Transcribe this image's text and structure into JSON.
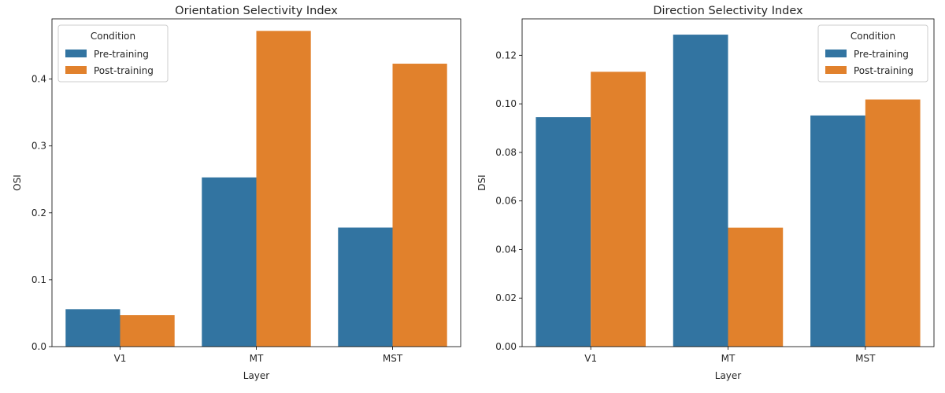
{
  "chart_data": [
    {
      "type": "bar",
      "title": "Orientation Selectivity Index",
      "xlabel": "Layer",
      "ylabel": "OSI",
      "categories": [
        "V1",
        "MT",
        "MST"
      ],
      "ylim": [
        0,
        0.49
      ],
      "yticks": [
        0.0,
        0.1,
        0.2,
        0.3,
        0.4
      ],
      "ytick_labels": [
        "0.0",
        "0.1",
        "0.2",
        "0.3",
        "0.4"
      ],
      "legend": {
        "title": "Condition",
        "placement": "top-left"
      },
      "series": [
        {
          "name": "Pre-training",
          "color": "#3274a1",
          "values": [
            0.056,
            0.253,
            0.178
          ]
        },
        {
          "name": "Post-training",
          "color": "#e1812c",
          "values": [
            0.047,
            0.472,
            0.423
          ]
        }
      ]
    },
    {
      "type": "bar",
      "title": "Direction Selectivity Index",
      "xlabel": "Layer",
      "ylabel": "DSI",
      "categories": [
        "V1",
        "MT",
        "MST"
      ],
      "ylim": [
        0,
        0.135
      ],
      "yticks": [
        0.0,
        0.02,
        0.04,
        0.06,
        0.08,
        0.1,
        0.12
      ],
      "ytick_labels": [
        "0.00",
        "0.02",
        "0.04",
        "0.06",
        "0.08",
        "0.10",
        "0.12"
      ],
      "legend": {
        "title": "Condition",
        "placement": "top-right"
      },
      "series": [
        {
          "name": "Pre-training",
          "color": "#3274a1",
          "values": [
            0.0945,
            0.1285,
            0.0952
          ]
        },
        {
          "name": "Post-training",
          "color": "#e1812c",
          "values": [
            0.1132,
            0.049,
            0.1018
          ]
        }
      ]
    }
  ]
}
